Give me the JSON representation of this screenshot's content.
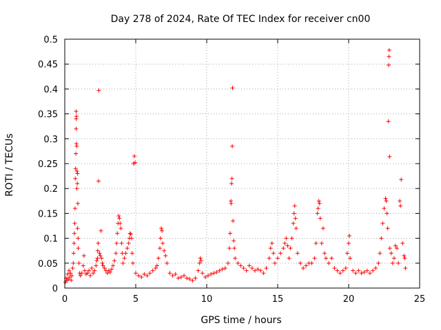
{
  "chart_data": {
    "type": "scatter",
    "title": "Day 278 of 2024, Rate Of TEC Index for receiver cn00",
    "xlabel": "GPS time / hours",
    "ylabel": "ROTI / TECUs",
    "xlim": [
      0,
      25
    ],
    "ylim": [
      0,
      0.5
    ],
    "xticks": [
      0,
      5,
      10,
      15,
      20,
      25
    ],
    "yticks": [
      0,
      0.05,
      0.1,
      0.15,
      0.2,
      0.25,
      0.3,
      0.35,
      0.4,
      0.45,
      0.5
    ],
    "grid": true,
    "marker": "+",
    "color": "#ff0000",
    "series": [
      {
        "name": "ROTI",
        "points": [
          [
            0.05,
            0.012
          ],
          [
            0.1,
            0.02
          ],
          [
            0.15,
            0.015
          ],
          [
            0.2,
            0.028
          ],
          [
            0.25,
            0.018
          ],
          [
            0.3,
            0.035
          ],
          [
            0.35,
            0.022
          ],
          [
            0.4,
            0.03
          ],
          [
            0.45,
            0.016
          ],
          [
            0.5,
            0.025
          ],
          [
            0.55,
            0.04
          ],
          [
            0.6,
            0.05
          ],
          [
            0.62,
            0.07
          ],
          [
            0.65,
            0.09
          ],
          [
            0.68,
            0.11
          ],
          [
            0.7,
            0.13
          ],
          [
            0.72,
            0.16
          ],
          [
            0.74,
            0.22
          ],
          [
            0.76,
            0.24
          ],
          [
            0.78,
            0.27
          ],
          [
            0.8,
            0.32
          ],
          [
            0.8,
            0.34
          ],
          [
            0.8,
            0.355
          ],
          [
            0.82,
            0.345
          ],
          [
            0.82,
            0.29
          ],
          [
            0.84,
            0.285
          ],
          [
            0.85,
            0.2
          ],
          [
            0.86,
            0.235
          ],
          [
            0.88,
            0.21
          ],
          [
            0.9,
            0.23
          ],
          [
            0.9,
            0.12
          ],
          [
            0.92,
            0.17
          ],
          [
            0.94,
            0.1
          ],
          [
            0.95,
            0.08
          ],
          [
            1.0,
            0.05
          ],
          [
            1.05,
            0.03
          ],
          [
            1.1,
            0.025
          ],
          [
            1.2,
            0.03
          ],
          [
            1.3,
            0.045
          ],
          [
            1.35,
            0.065
          ],
          [
            1.4,
            0.035
          ],
          [
            1.5,
            0.028
          ],
          [
            1.6,
            0.03
          ],
          [
            1.7,
            0.035
          ],
          [
            1.8,
            0.025
          ],
          [
            1.9,
            0.04
          ],
          [
            2.0,
            0.03
          ],
          [
            2.1,
            0.035
          ],
          [
            2.2,
            0.045
          ],
          [
            2.25,
            0.055
          ],
          [
            2.3,
            0.06
          ],
          [
            2.32,
            0.075
          ],
          [
            2.35,
            0.09
          ],
          [
            2.38,
            0.215
          ],
          [
            2.4,
            0.397
          ],
          [
            2.45,
            0.07
          ],
          [
            2.5,
            0.065
          ],
          [
            2.55,
            0.115
          ],
          [
            2.6,
            0.06
          ],
          [
            2.65,
            0.05
          ],
          [
            2.7,
            0.045
          ],
          [
            2.8,
            0.04
          ],
          [
            2.9,
            0.035
          ],
          [
            3.0,
            0.03
          ],
          [
            3.1,
            0.035
          ],
          [
            3.2,
            0.032
          ],
          [
            3.3,
            0.038
          ],
          [
            3.4,
            0.045
          ],
          [
            3.5,
            0.055
          ],
          [
            3.6,
            0.07
          ],
          [
            3.65,
            0.09
          ],
          [
            3.7,
            0.11
          ],
          [
            3.75,
            0.13
          ],
          [
            3.8,
            0.145
          ],
          [
            3.85,
            0.14
          ],
          [
            3.9,
            0.13
          ],
          [
            3.95,
            0.12
          ],
          [
            4.0,
            0.09
          ],
          [
            4.05,
            0.07
          ],
          [
            4.1,
            0.05
          ],
          [
            4.2,
            0.06
          ],
          [
            4.3,
            0.07
          ],
          [
            4.4,
            0.08
          ],
          [
            4.5,
            0.09
          ],
          [
            4.55,
            0.1
          ],
          [
            4.6,
            0.11
          ],
          [
            4.65,
            0.108
          ],
          [
            4.7,
            0.1
          ],
          [
            4.75,
            0.07
          ],
          [
            4.8,
            0.05
          ],
          [
            4.85,
            0.25
          ],
          [
            4.9,
            0.265
          ],
          [
            4.95,
            0.252
          ],
          [
            5.0,
            0.03
          ],
          [
            5.2,
            0.025
          ],
          [
            5.4,
            0.022
          ],
          [
            5.6,
            0.028
          ],
          [
            5.8,
            0.025
          ],
          [
            6.0,
            0.03
          ],
          [
            6.2,
            0.035
          ],
          [
            6.4,
            0.04
          ],
          [
            6.5,
            0.045
          ],
          [
            6.6,
            0.06
          ],
          [
            6.7,
            0.08
          ],
          [
            6.75,
            0.1
          ],
          [
            6.8,
            0.12
          ],
          [
            6.85,
            0.115
          ],
          [
            6.9,
            0.09
          ],
          [
            7.0,
            0.075
          ],
          [
            7.1,
            0.065
          ],
          [
            7.2,
            0.05
          ],
          [
            7.4,
            0.03
          ],
          [
            7.6,
            0.025
          ],
          [
            7.8,
            0.028
          ],
          [
            8.0,
            0.02
          ],
          [
            8.2,
            0.022
          ],
          [
            8.4,
            0.025
          ],
          [
            8.6,
            0.02
          ],
          [
            8.8,
            0.018
          ],
          [
            9.0,
            0.015
          ],
          [
            9.2,
            0.02
          ],
          [
            9.4,
            0.035
          ],
          [
            9.5,
            0.05
          ],
          [
            9.55,
            0.06
          ],
          [
            9.6,
            0.055
          ],
          [
            9.7,
            0.03
          ],
          [
            9.9,
            0.022
          ],
          [
            10.1,
            0.025
          ],
          [
            10.3,
            0.028
          ],
          [
            10.5,
            0.03
          ],
          [
            10.7,
            0.032
          ],
          [
            10.9,
            0.035
          ],
          [
            11.1,
            0.038
          ],
          [
            11.3,
            0.04
          ],
          [
            11.5,
            0.05
          ],
          [
            11.6,
            0.08
          ],
          [
            11.65,
            0.11
          ],
          [
            11.7,
            0.175
          ],
          [
            11.72,
            0.17
          ],
          [
            11.75,
            0.21
          ],
          [
            11.78,
            0.22
          ],
          [
            11.8,
            0.285
          ],
          [
            11.82,
            0.402
          ],
          [
            11.85,
            0.135
          ],
          [
            11.9,
            0.095
          ],
          [
            11.95,
            0.08
          ],
          [
            12.0,
            0.06
          ],
          [
            12.2,
            0.05
          ],
          [
            12.4,
            0.045
          ],
          [
            12.6,
            0.04
          ],
          [
            12.8,
            0.035
          ],
          [
            13.0,
            0.045
          ],
          [
            13.2,
            0.04
          ],
          [
            13.4,
            0.035
          ],
          [
            13.6,
            0.038
          ],
          [
            13.8,
            0.035
          ],
          [
            14.0,
            0.03
          ],
          [
            14.2,
            0.04
          ],
          [
            14.4,
            0.06
          ],
          [
            14.5,
            0.08
          ],
          [
            14.6,
            0.09
          ],
          [
            14.7,
            0.07
          ],
          [
            14.8,
            0.05
          ],
          [
            15.0,
            0.06
          ],
          [
            15.2,
            0.07
          ],
          [
            15.4,
            0.08
          ],
          [
            15.5,
            0.09
          ],
          [
            15.6,
            0.1
          ],
          [
            15.7,
            0.085
          ],
          [
            15.8,
            0.06
          ],
          [
            15.9,
            0.08
          ],
          [
            16.0,
            0.1
          ],
          [
            16.1,
            0.13
          ],
          [
            16.15,
            0.15
          ],
          [
            16.2,
            0.165
          ],
          [
            16.25,
            0.14
          ],
          [
            16.3,
            0.12
          ],
          [
            16.4,
            0.07
          ],
          [
            16.6,
            0.05
          ],
          [
            16.8,
            0.04
          ],
          [
            17.0,
            0.045
          ],
          [
            17.2,
            0.05
          ],
          [
            17.4,
            0.05
          ],
          [
            17.6,
            0.06
          ],
          [
            17.7,
            0.09
          ],
          [
            17.8,
            0.15
          ],
          [
            17.85,
            0.16
          ],
          [
            17.9,
            0.175
          ],
          [
            17.95,
            0.17
          ],
          [
            18.0,
            0.14
          ],
          [
            18.1,
            0.09
          ],
          [
            18.2,
            0.12
          ],
          [
            18.3,
            0.07
          ],
          [
            18.4,
            0.06
          ],
          [
            18.6,
            0.05
          ],
          [
            18.8,
            0.06
          ],
          [
            19.0,
            0.04
          ],
          [
            19.2,
            0.035
          ],
          [
            19.4,
            0.03
          ],
          [
            19.6,
            0.035
          ],
          [
            19.8,
            0.04
          ],
          [
            19.9,
            0.07
          ],
          [
            20.0,
            0.09
          ],
          [
            20.05,
            0.105
          ],
          [
            20.1,
            0.06
          ],
          [
            20.3,
            0.035
          ],
          [
            20.5,
            0.03
          ],
          [
            20.7,
            0.035
          ],
          [
            20.9,
            0.03
          ],
          [
            21.1,
            0.032
          ],
          [
            21.3,
            0.035
          ],
          [
            21.5,
            0.03
          ],
          [
            21.7,
            0.035
          ],
          [
            21.9,
            0.04
          ],
          [
            22.1,
            0.05
          ],
          [
            22.2,
            0.07
          ],
          [
            22.3,
            0.1
          ],
          [
            22.4,
            0.13
          ],
          [
            22.5,
            0.16
          ],
          [
            22.6,
            0.18
          ],
          [
            22.65,
            0.175
          ],
          [
            22.7,
            0.15
          ],
          [
            22.75,
            0.12
          ],
          [
            22.8,
            0.335
          ],
          [
            22.82,
            0.448
          ],
          [
            22.84,
            0.465
          ],
          [
            22.86,
            0.478
          ],
          [
            22.88,
            0.264
          ],
          [
            22.9,
            0.08
          ],
          [
            23.0,
            0.07
          ],
          [
            23.1,
            0.05
          ],
          [
            23.2,
            0.06
          ],
          [
            23.3,
            0.085
          ],
          [
            23.4,
            0.08
          ],
          [
            23.5,
            0.05
          ],
          [
            23.6,
            0.175
          ],
          [
            23.65,
            0.165
          ],
          [
            23.7,
            0.218
          ],
          [
            23.8,
            0.09
          ],
          [
            23.9,
            0.065
          ],
          [
            23.95,
            0.06
          ],
          [
            24.0,
            0.04
          ]
        ]
      }
    ]
  }
}
